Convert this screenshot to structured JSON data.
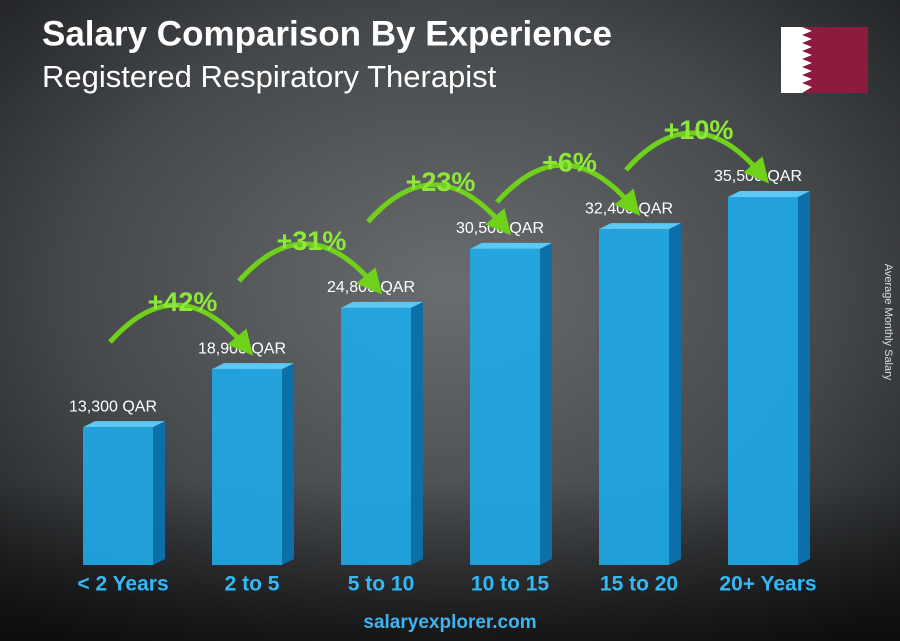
{
  "chart_data": {
    "type": "bar",
    "title": "Salary Comparison By Experience",
    "subtitle": "Registered Respiratory Therapist",
    "y_label": "Average Monthly Salary",
    "categories": [
      "< 2 Years",
      "2 to 5",
      "5 to 10",
      "10 to 15",
      "15 to 20",
      "20+ Years"
    ],
    "values": [
      13300,
      18900,
      24800,
      30500,
      32400,
      35500
    ],
    "value_labels": [
      "13,300 QAR",
      "18,900 QAR",
      "24,800 QAR",
      "30,500 QAR",
      "32,400 QAR",
      "35,500 QAR"
    ],
    "annotations": [
      "+42%",
      "+31%",
      "+23%",
      "+6%",
      "+10%"
    ],
    "color": "#1fa8e6",
    "source": "salaryexplorer.com"
  }
}
